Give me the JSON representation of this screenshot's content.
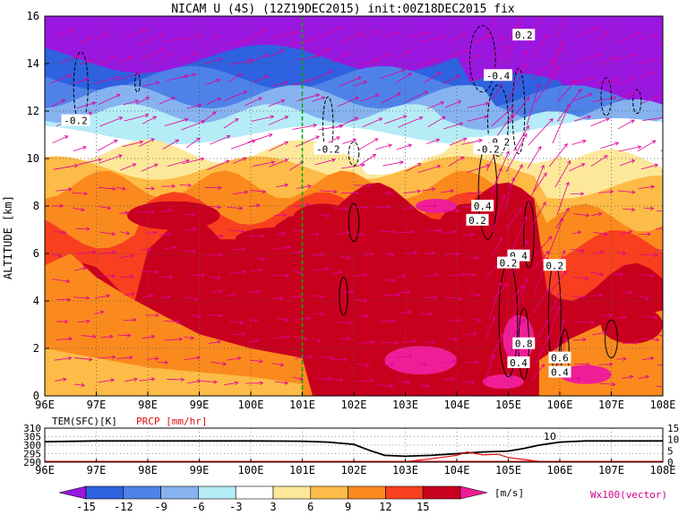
{
  "title": "NICAM U (4S) (12Z19DEC2015) init:00Z18DEC2015 fix",
  "colors": {
    "levels": [
      "#9a17e0",
      "#2e62e0",
      "#4f82e8",
      "#86b3f0",
      "#b6ecf6",
      "#ffffff",
      "#fde89a",
      "#fdbb47",
      "#fb8a1e",
      "#f8401e",
      "#c8001e",
      "#f01e96"
    ],
    "contour": "#000000",
    "vector": "#e0009a",
    "marker_line": "#00b000",
    "temperature": "#000000",
    "precipitation": "#e01010"
  },
  "chart_data": [
    {
      "type": "heatmap",
      "title": "NICAM U (4S) (12Z19DEC2015) init:00Z18DEC2015 fix",
      "ylabel": "ALTITUDE [km]",
      "xlabel": "",
      "x_ticks": [
        "96E",
        "97E",
        "98E",
        "99E",
        "100E",
        "101E",
        "102E",
        "103E",
        "104E",
        "105E",
        "106E",
        "107E",
        "108E"
      ],
      "y_ticks": [
        "0",
        "2",
        "4",
        "6",
        "8",
        "10",
        "12",
        "14",
        "16"
      ],
      "xlim": [
        96,
        108
      ],
      "ylim": [
        0,
        16
      ],
      "grid": true,
      "marker_longitude": 101,
      "contour_labels": [
        {
          "text": "0.2",
          "lon": 105.3,
          "alt": 15.2
        },
        {
          "text": "-0.4",
          "lon": 104.8,
          "alt": 13.5
        },
        {
          "text": "-0.2",
          "lon": 96.6,
          "alt": 11.6
        },
        {
          "text": "-0.2",
          "lon": 101.5,
          "alt": 10.4
        },
        {
          "text": "-0.2",
          "lon": 104.8,
          "alt": 10.7
        },
        {
          "text": "-0.2",
          "lon": 104.6,
          "alt": 10.4
        },
        {
          "text": "0.4",
          "lon": 104.5,
          "alt": 8.0
        },
        {
          "text": "0.2",
          "lon": 104.4,
          "alt": 7.4
        },
        {
          "text": "0.4",
          "lon": 105.2,
          "alt": 5.9
        },
        {
          "text": "0.2",
          "lon": 105.0,
          "alt": 5.6
        },
        {
          "text": "0.2",
          "lon": 105.9,
          "alt": 5.5
        },
        {
          "text": "0.8",
          "lon": 105.3,
          "alt": 2.2
        },
        {
          "text": "0.4",
          "lon": 105.2,
          "alt": 1.4
        },
        {
          "text": "0.6",
          "lon": 106.0,
          "alt": 1.6
        },
        {
          "text": "0.4",
          "lon": 106.0,
          "alt": 1.0
        }
      ]
    },
    {
      "type": "line",
      "title": "",
      "series": [
        {
          "name": "TEM(SFC)[K]",
          "axis": "left",
          "x": [
            96,
            97,
            98,
            99,
            100,
            101,
            101.5,
            102,
            102.3,
            102.6,
            103,
            103.5,
            104,
            104.5,
            105,
            105.3,
            105.6,
            106,
            106.5,
            107,
            107.5,
            108
          ],
          "values": [
            302,
            302.5,
            302.5,
            302.5,
            302.5,
            302.3,
            301.8,
            300.5,
            297,
            294,
            293.5,
            294,
            295,
            296,
            296.5,
            298,
            300,
            301.8,
            302.5,
            302.5,
            302.5,
            302.5
          ]
        },
        {
          "name": "PRCP [mm/hr]",
          "axis": "right",
          "x": [
            96,
            97,
            98,
            99,
            100,
            101,
            101.5,
            102,
            102.5,
            103,
            103.5,
            104,
            104.2,
            104.5,
            104.8,
            105,
            105.3,
            105.6,
            106,
            106.5,
            107,
            108
          ],
          "values": [
            0,
            0,
            0,
            0,
            0,
            0,
            0,
            0,
            0,
            0.2,
            1.5,
            3,
            4.5,
            3.2,
            3.5,
            2,
            1.2,
            0.3,
            0,
            0,
            0,
            0
          ]
        }
      ],
      "yleft_ticks": [
        "290",
        "295",
        "300",
        "305",
        "310"
      ],
      "yleft_lim": [
        290,
        310
      ],
      "yright_ticks": [
        "0",
        "5",
        "10",
        "15"
      ],
      "yright_lim": [
        0,
        15
      ],
      "x_ticks": [
        "96E",
        "97E",
        "98E",
        "99E",
        "100E",
        "101E",
        "102E",
        "103E",
        "104E",
        "105E",
        "106E",
        "107E",
        "108E"
      ],
      "xlim": [
        96,
        108
      ],
      "annotation": "10"
    },
    {
      "type": "legend",
      "tick_labels": [
        "-15",
        "-12",
        "-9",
        "-6",
        "-3",
        "3",
        "6",
        "9",
        "12",
        "15"
      ],
      "unit": "[m/s]",
      "vector_label": "Wx100(vector)"
    }
  ]
}
